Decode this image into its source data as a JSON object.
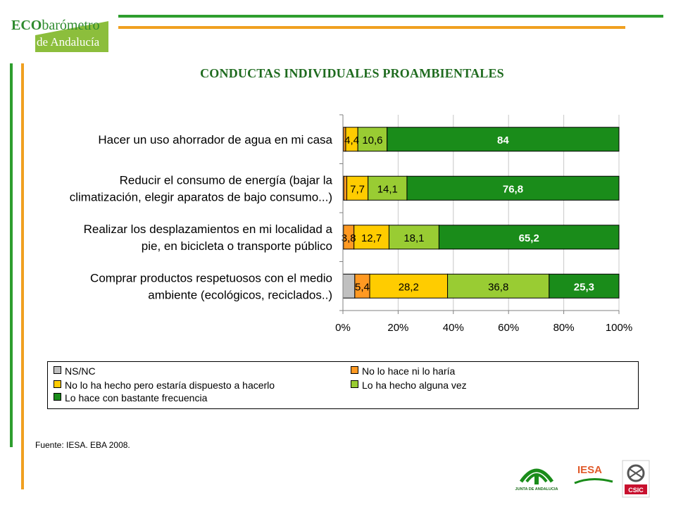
{
  "brand": {
    "line1_eco": "ECO",
    "line1_rest": "barómetro",
    "line2": "de Andalucía"
  },
  "colors": {
    "green_rule": "#2e9e2e",
    "orange_rule": "#f0a020",
    "title_green": "#1f6b1f",
    "nsnc": "#c0c0c0",
    "no_hace": "#ff9922",
    "dispuesto": "#ffcc00",
    "alguna_vez": "#99cc33",
    "frecuencia": "#1a8c1a"
  },
  "title": "CONDUCTAS INDIVIDUALES PROAMBIENTALES",
  "chart_data": {
    "type": "bar",
    "orientation": "horizontal",
    "stacked": "percent",
    "categories": [
      [
        "Hacer un uso ahorrador de agua en mi casa"
      ],
      [
        "Reducir el consumo de energía (bajar la",
        "climatización, elegir aparatos de bajo consumo...)"
      ],
      [
        "Realizar los desplazamientos en mi localidad a",
        "pie, en bicicleta o transporte público"
      ],
      [
        "Comprar productos respetuosos con el medio",
        "ambiente (ecológicos, reciclados..)"
      ]
    ],
    "series": [
      {
        "name": "NS/NC",
        "color": "#c0c0c0",
        "values": [
          0.2,
          0.3,
          0.2,
          4.3
        ],
        "labels": [
          "",
          "",
          "",
          ""
        ]
      },
      {
        "name": "No lo hace ni lo haría",
        "color": "#ff9922",
        "values": [
          0.8,
          1.1,
          3.8,
          5.4
        ],
        "labels": [
          "",
          "",
          "3,8",
          "5,4"
        ]
      },
      {
        "name": "No lo ha hecho pero estaría dispuesto a hacerlo",
        "color": "#ffcc00",
        "values": [
          4.4,
          7.7,
          12.7,
          28.2
        ],
        "labels": [
          "4,4",
          "7,7",
          "12,7",
          "28,2"
        ]
      },
      {
        "name": "Lo ha hecho alguna vez",
        "color": "#99cc33",
        "values": [
          10.6,
          14.1,
          18.1,
          36.8
        ],
        "labels": [
          "10,6",
          "14,1",
          "18,1",
          "36,8"
        ]
      },
      {
        "name": "Lo hace con bastante frecuencia",
        "color": "#1a8c1a",
        "values": [
          84,
          76.8,
          65.2,
          25.3
        ],
        "labels": [
          "84",
          "76,8",
          "65,2",
          "25,3"
        ]
      }
    ],
    "xlim": [
      0,
      100
    ],
    "xticks": [
      "0%",
      "20%",
      "40%",
      "60%",
      "80%",
      "100%"
    ],
    "grid": true,
    "legend_position": "bottom"
  },
  "legend": {
    "items": [
      {
        "label": "NS/NC",
        "color": "#c0c0c0"
      },
      {
        "label": "No lo hace ni lo haría",
        "color": "#ff9922"
      },
      {
        "label": "No lo ha hecho pero estaría dispuesto a hacerlo",
        "color": "#ffcc00"
      },
      {
        "label": "Lo ha hecho alguna vez",
        "color": "#99cc33"
      },
      {
        "label": "Lo hace con bastante frecuencia",
        "color": "#1a8c1a"
      }
    ]
  },
  "source": "Fuente: IESA. EBA 2008.",
  "footer": {
    "junta": "JUNTA DE ANDALUCIA",
    "iesa": "IESA",
    "csic": "CSIC"
  }
}
